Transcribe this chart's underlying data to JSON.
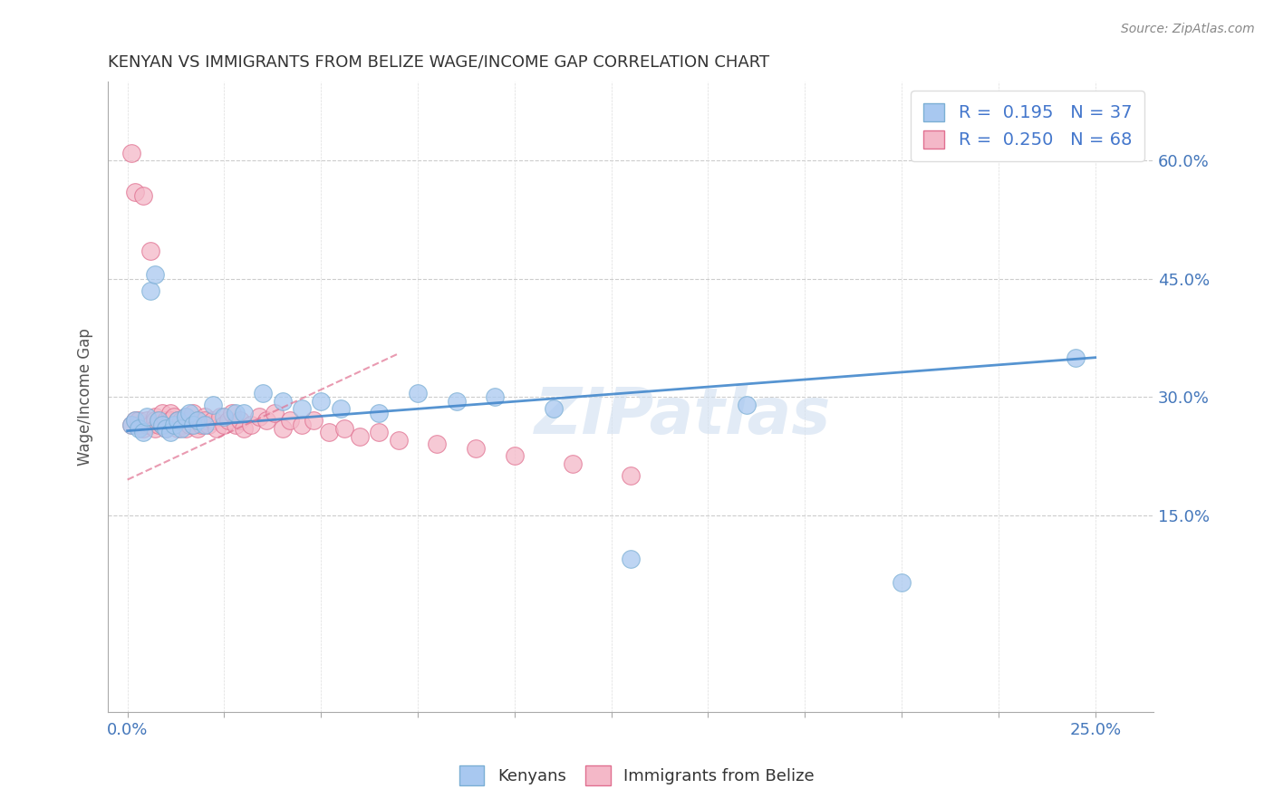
{
  "title": "KENYAN VS IMMIGRANTS FROM BELIZE WAGE/INCOME GAP CORRELATION CHART",
  "source": "Source: ZipAtlas.com",
  "xlim": [
    -0.005,
    0.265
  ],
  "ylim": [
    -0.1,
    0.7
  ],
  "x_tick_positions": [
    0.0,
    0.025,
    0.05,
    0.075,
    0.1,
    0.125,
    0.15,
    0.175,
    0.2,
    0.225,
    0.25
  ],
  "y_tick_positions": [
    0.15,
    0.3,
    0.45,
    0.6
  ],
  "y_tick_labels": [
    "15.0%",
    "30.0%",
    "45.0%",
    "60.0%"
  ],
  "kenyan_R": 0.195,
  "kenyan_N": 37,
  "belize_R": 0.25,
  "belize_N": 68,
  "kenyan_dot_color": "#a8c8f0",
  "kenyan_edge_color": "#7bafd4",
  "belize_dot_color": "#f4b8c8",
  "belize_edge_color": "#e07090",
  "kenyan_line_color": "#4488cc",
  "belize_line_color": "#e07090",
  "legend_label_kenyan": "Kenyans",
  "legend_label_belize": "Immigrants from Belize",
  "watermark": "ZIPatlas",
  "kenyan_x": [
    0.001,
    0.002,
    0.003,
    0.004,
    0.005,
    0.006,
    0.007,
    0.008,
    0.009,
    0.01,
    0.011,
    0.012,
    0.013,
    0.014,
    0.015,
    0.016,
    0.017,
    0.018,
    0.02,
    0.022,
    0.025,
    0.028,
    0.03,
    0.035,
    0.04,
    0.045,
    0.05,
    0.055,
    0.065,
    0.075,
    0.085,
    0.095,
    0.11,
    0.13,
    0.16,
    0.2,
    0.245
  ],
  "kenyan_y": [
    0.265,
    0.27,
    0.26,
    0.255,
    0.275,
    0.435,
    0.455,
    0.27,
    0.265,
    0.26,
    0.255,
    0.265,
    0.27,
    0.26,
    0.275,
    0.28,
    0.265,
    0.27,
    0.265,
    0.29,
    0.275,
    0.28,
    0.28,
    0.305,
    0.295,
    0.285,
    0.295,
    0.285,
    0.28,
    0.305,
    0.295,
    0.3,
    0.285,
    0.095,
    0.29,
    0.065,
    0.35
  ],
  "belize_x": [
    0.001,
    0.001,
    0.002,
    0.002,
    0.003,
    0.003,
    0.004,
    0.004,
    0.005,
    0.005,
    0.006,
    0.006,
    0.007,
    0.007,
    0.007,
    0.008,
    0.008,
    0.009,
    0.009,
    0.01,
    0.01,
    0.011,
    0.011,
    0.012,
    0.012,
    0.013,
    0.013,
    0.014,
    0.014,
    0.015,
    0.015,
    0.016,
    0.016,
    0.017,
    0.017,
    0.018,
    0.018,
    0.019,
    0.02,
    0.02,
    0.021,
    0.022,
    0.023,
    0.024,
    0.025,
    0.026,
    0.027,
    0.028,
    0.029,
    0.03,
    0.032,
    0.034,
    0.036,
    0.038,
    0.04,
    0.042,
    0.045,
    0.048,
    0.052,
    0.056,
    0.06,
    0.065,
    0.07,
    0.08,
    0.09,
    0.1,
    0.115,
    0.13
  ],
  "belize_y": [
    0.61,
    0.265,
    0.56,
    0.27,
    0.265,
    0.27,
    0.26,
    0.555,
    0.265,
    0.27,
    0.485,
    0.265,
    0.275,
    0.27,
    0.26,
    0.265,
    0.27,
    0.28,
    0.265,
    0.27,
    0.26,
    0.28,
    0.27,
    0.265,
    0.275,
    0.27,
    0.26,
    0.265,
    0.27,
    0.275,
    0.26,
    0.265,
    0.27,
    0.28,
    0.265,
    0.27,
    0.26,
    0.265,
    0.275,
    0.27,
    0.265,
    0.27,
    0.26,
    0.275,
    0.265,
    0.27,
    0.28,
    0.265,
    0.27,
    0.26,
    0.265,
    0.275,
    0.27,
    0.28,
    0.26,
    0.27,
    0.265,
    0.27,
    0.255,
    0.26,
    0.25,
    0.255,
    0.245,
    0.24,
    0.235,
    0.225,
    0.215,
    0.2
  ],
  "kenyan_trendline_x0": 0.0,
  "kenyan_trendline_y0": 0.257,
  "kenyan_trendline_x1": 0.25,
  "kenyan_trendline_y1": 0.35,
  "belize_trendline_x0": 0.0,
  "belize_trendline_y0": 0.195,
  "belize_trendline_x1": 0.07,
  "belize_trendline_y1": 0.355
}
